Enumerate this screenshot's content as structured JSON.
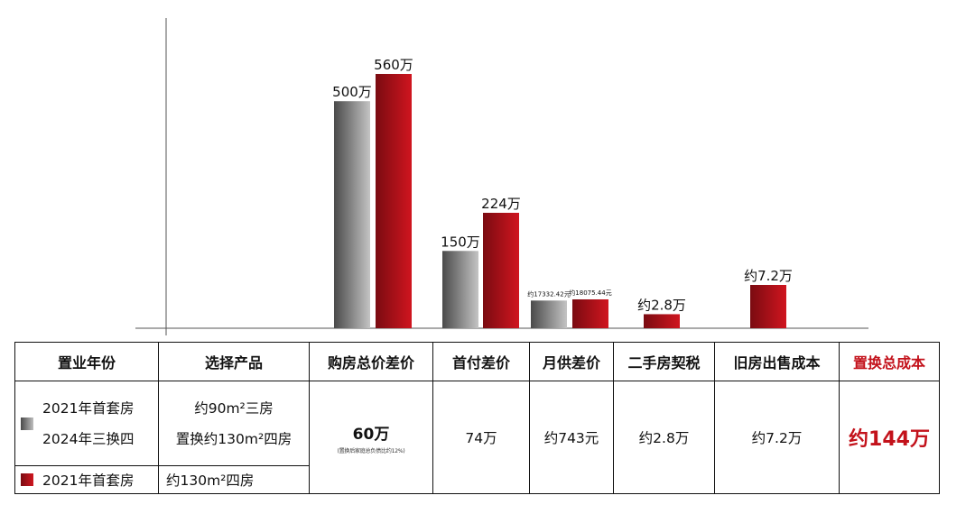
{
  "chart_data": {
    "type": "bar",
    "categories": [
      "购房总价差价",
      "首付差价",
      "月供差价",
      "二手房契税",
      "旧房出售成本"
    ],
    "series": [
      {
        "values": [
          500,
          150,
          17332.42,
          null,
          null
        ],
        "labels": [
          "500万",
          "150万",
          "约17332.42元",
          "",
          ""
        ]
      },
      {
        "values": [
          560,
          224,
          18075.44,
          2.8,
          7.2
        ],
        "labels": [
          "560万",
          "224万",
          "约18075.44元",
          "约2.8万",
          "约7.2万"
        ]
      }
    ],
    "colors": {
      "gray_dark": "#4a4a4a",
      "gray_light": "#c4c4c4",
      "red_dark": "#7a0b11",
      "red_light": "#d0151f"
    },
    "grid": false,
    "legend": "none"
  },
  "table": {
    "headers": [
      "置业年份",
      "选择产品",
      "购房总价差价",
      "首付差价",
      "月供差价",
      "二手房契税",
      "旧房出售成本",
      "置换总成本"
    ],
    "row_gray": {
      "year_line1": "2021年首套房",
      "year_line2": "2024年三换四",
      "product_line1": "约90m²三房",
      "product_line2": "置换约130m²四房",
      "price_diff": "60万",
      "price_note": "(置换后家庭总负债比约12%)",
      "down_payment_diff": "74万",
      "monthly_diff": "约743元",
      "deed_tax": "约2.8万",
      "sale_cost": "约7.2万",
      "total": "约144万"
    },
    "row_red": {
      "year": "2021年首套房",
      "product": "约130m²四房"
    }
  }
}
